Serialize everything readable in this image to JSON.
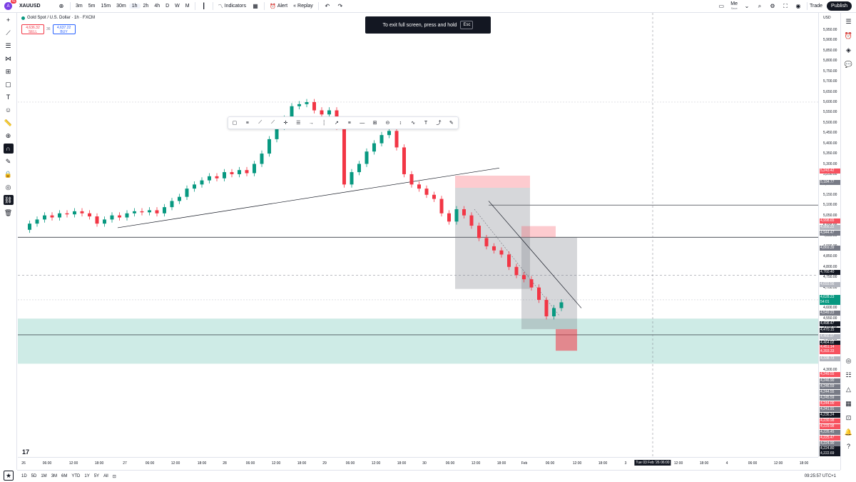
{
  "topbar": {
    "avatar_letter": "A",
    "avatar_badge": "41",
    "symbol": "XAUUSD",
    "intervals": [
      "3m",
      "5m",
      "15m",
      "30m",
      "1h",
      "2h",
      "4h",
      "D",
      "W",
      "M"
    ],
    "active_interval": "1h",
    "indicators_label": "Indicators",
    "alert_label": "Alert",
    "replay_label": "Replay",
    "layout_name": "Me",
    "layout_status": "Save",
    "trade_label": "Trade",
    "publish_label": "Publish"
  },
  "legend": {
    "title": "Gold Spot / U.S. Dollar · 1h · FXCM",
    "sell_price": "4,636.32",
    "sell_label": "SELL",
    "spread": "36",
    "buy_price": "4,637.22",
    "buy_label": "BUY"
  },
  "toast": {
    "text": "To exit full screen, press and hold",
    "key": "Esc"
  },
  "price_axis": {
    "currency": "USD",
    "ticks": [
      "5,950.00",
      "5,900.00",
      "5,850.00",
      "5,800.00",
      "5,750.00",
      "5,700.00",
      "5,650.00",
      "5,600.00",
      "5,550.00",
      "5,500.00",
      "5,450.00",
      "5,400.00",
      "5,350.00",
      "5,300.00",
      "5,250.00",
      "5,200.00",
      "5,150.00",
      "5,100.00",
      "5,050.00",
      "5,000.00",
      "4,950.00",
      "4,900.00",
      "4,850.00",
      "4,800.00",
      "4,750.00",
      "4,700.00",
      "4,650.00",
      "4,600.00",
      "4,550.00",
      "4,500.00",
      "4,450.00",
      "4,400.00",
      "4,350.00",
      "4,300.00"
    ],
    "tags": [
      {
        "text": "5,243.42",
        "color": "#f7525f"
      },
      {
        "text": "5,184.77",
        "color": "#787b86"
      },
      {
        "text": "4,998.65",
        "color": "#f7525f"
      },
      {
        "text": "4,956.22",
        "color": "#b2b5be"
      },
      {
        "text": "4,944.47",
        "color": "#787b86"
      },
      {
        "text": "4,869.39",
        "color": "#787b86"
      },
      {
        "text": "4,760.40",
        "color": "#131722"
      },
      {
        "text": "4,693.56",
        "color": "#b2b5be"
      },
      {
        "text": "4,628.23",
        "color": "#089981"
      },
      {
        "text": "54:01",
        "color": "#089981"
      },
      {
        "text": "4,549.23",
        "color": "#787b86"
      },
      {
        "text": "4,498.47",
        "color": "#131722"
      },
      {
        "text": "4,470.15",
        "color": "#131722"
      },
      {
        "text": "4,466.97",
        "color": "#b2b5be"
      },
      {
        "text": "4,464.02",
        "color": "#131722"
      },
      {
        "text": "4,451.14",
        "color": "#f7525f"
      },
      {
        "text": "4,393.33",
        "color": "#f7525f"
      },
      {
        "text": "4,338.73",
        "color": "#b2b5be"
      },
      {
        "text": "4,249.55",
        "color": "#f7525f"
      },
      {
        "text": "4,246.90",
        "color": "#787b86"
      },
      {
        "text": "4,246.59",
        "color": "#787b86"
      },
      {
        "text": "4,244.55",
        "color": "#787b86"
      },
      {
        "text": "4,245.59",
        "color": "#787b86"
      },
      {
        "text": "4,244.00",
        "color": "#f7525f"
      },
      {
        "text": "4,241.91",
        "color": "#787b86"
      },
      {
        "text": "4,236.24",
        "color": "#131722"
      },
      {
        "text": "4,230.98",
        "color": "#f7525f"
      },
      {
        "text": "4,229.98",
        "color": "#f7525f"
      },
      {
        "text": "4,226.45",
        "color": "#787b86"
      },
      {
        "text": "4,225.47",
        "color": "#f7525f"
      },
      {
        "text": "4,224.90",
        "color": "#787b86"
      },
      {
        "text": "4,224.80",
        "color": "#131722"
      },
      {
        "text": "4,222.69",
        "color": "#131722"
      }
    ]
  },
  "time_axis": {
    "labels": [
      "26",
      "06:00",
      "12:00",
      "18:00",
      "27",
      "06:00",
      "12:00",
      "18:00",
      "28",
      "06:00",
      "12:00",
      "18:00",
      "29",
      "06:00",
      "12:00",
      "18:00",
      "30",
      "06:00",
      "12:00",
      "18:00",
      "Feb",
      "06:00",
      "12:00",
      "18:00",
      "3",
      "12:00",
      "18:00",
      "4",
      "06:00",
      "12:00",
      "18:00"
    ],
    "crosshair": "Tue 03 Feb '26   06:00"
  },
  "bottombar": {
    "ranges": [
      "1D",
      "5D",
      "1M",
      "3M",
      "6M",
      "YTD",
      "1Y",
      "5Y",
      "All"
    ],
    "clock": "09:25:57 UTC+1"
  },
  "chart_data": {
    "type": "candlestick",
    "title": "Gold Spot / U.S. Dollar · 1h · FXCM",
    "ylim": [
      4250,
      5980
    ],
    "colors": {
      "up": "#089981",
      "down": "#f23645"
    },
    "ohlc_trend": [
      4980,
      5010,
      5030,
      5050,
      5040,
      5060,
      5055,
      5070,
      5060,
      5045,
      5010,
      5030,
      5050,
      5040,
      5060,
      5070,
      5065,
      5075,
      5060,
      5090,
      5120,
      5140,
      5180,
      5200,
      5220,
      5240,
      5230,
      5260,
      5250,
      5270,
      5255,
      5300,
      5350,
      5420,
      5480,
      5520,
      5580,
      5590,
      5600,
      5560,
      5540,
      5560,
      5480,
      5200,
      5260,
      5300,
      5360,
      5400,
      5440,
      5460,
      5380,
      5250,
      5200,
      5180,
      5150,
      5130,
      5060,
      5020,
      5080,
      5050,
      5000,
      4940,
      4900,
      4880,
      4860,
      4800,
      4760,
      4740,
      4700,
      4640,
      4560,
      4600,
      4628
    ]
  }
}
